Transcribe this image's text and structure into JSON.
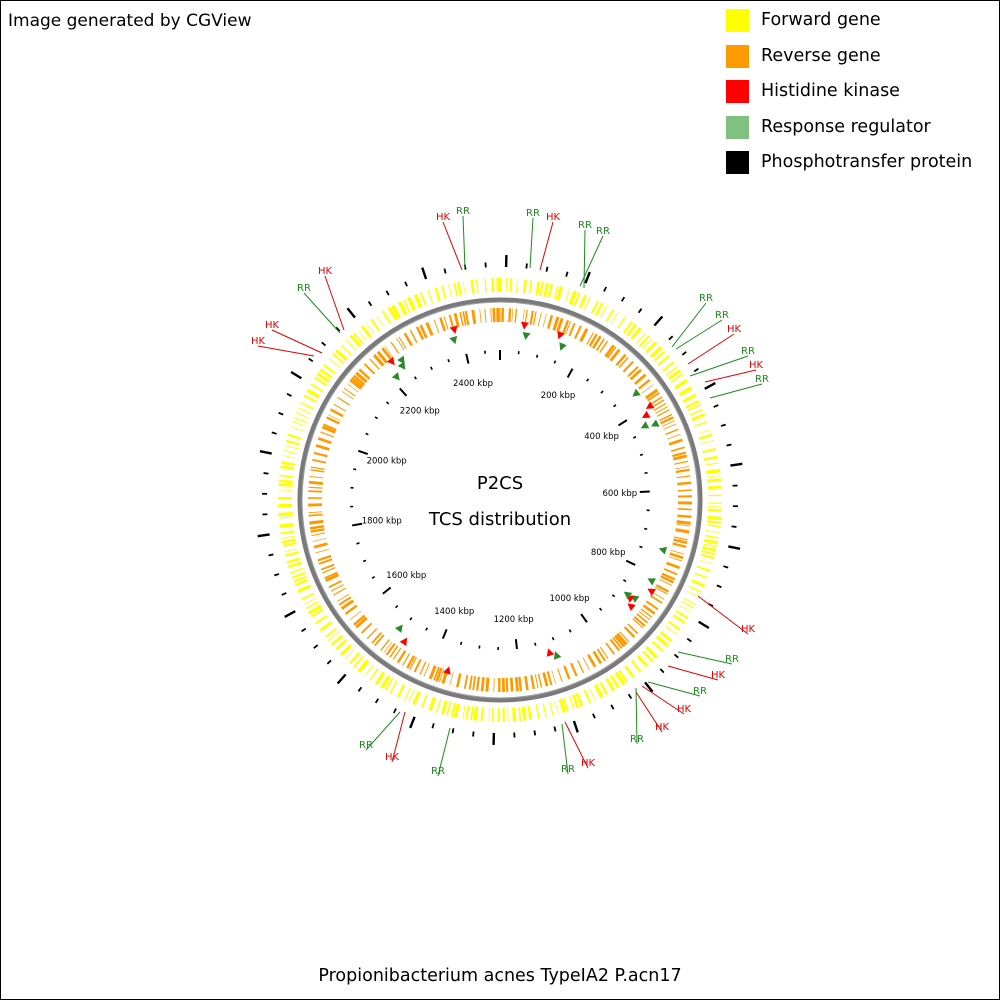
{
  "credit": "Image generated by CGView",
  "legend": [
    {
      "label": "Forward gene",
      "color": "#ffff00"
    },
    {
      "label": "Reverse gene",
      "color": "#ff9900"
    },
    {
      "label": "Histidine kinase",
      "color": "#ff0000"
    },
    {
      "label": "Response regulator",
      "color": "#80c080"
    },
    {
      "label": "Phosphotransfer protein",
      "color": "#000000"
    }
  ],
  "center_title": {
    "line1": "P2CS",
    "line2": "TCS distribution"
  },
  "footer": "Propionibacterium acnes TypeIA2 P.acn17",
  "map": {
    "genome_length_kbp": 2490,
    "tick_labels_kbp": [
      200,
      400,
      600,
      800,
      1000,
      1200,
      1400,
      1600,
      1800,
      2000,
      2200,
      2400
    ],
    "tick_label_suffix": " kbp",
    "feature_labels": [
      {
        "text": "RR",
        "type": "Response regulator"
      },
      {
        "text": "HK",
        "type": "Histidine kinase"
      },
      {
        "text": "RR",
        "type": "Response regulator"
      },
      {
        "text": "HK",
        "type": "Histidine kinase"
      },
      {
        "text": "RR",
        "type": "Response regulator"
      },
      {
        "text": "RR",
        "type": "Response regulator"
      },
      {
        "text": "HK",
        "type": "Histidine kinase"
      },
      {
        "text": "RR",
        "type": "Response regulator"
      },
      {
        "text": "HK",
        "type": "Histidine kinase"
      },
      {
        "text": "HK",
        "type": "Histidine kinase"
      },
      {
        "text": "RR",
        "type": "Response regulator"
      },
      {
        "text": "RR",
        "type": "Response regulator"
      },
      {
        "text": "HK",
        "type": "Histidine kinase"
      },
      {
        "text": "RR",
        "type": "Response regulator"
      },
      {
        "text": "HK",
        "type": "Histidine kinase"
      },
      {
        "text": "RR",
        "type": "Response regulator"
      },
      {
        "text": "HK",
        "type": "Histidine kinase"
      },
      {
        "text": "RR",
        "type": "Response regulator"
      },
      {
        "text": "HK",
        "type": "Histidine kinase"
      },
      {
        "text": "RR",
        "type": "Response regulator"
      },
      {
        "text": "HK",
        "type": "Histidine kinase"
      },
      {
        "text": "HK",
        "type": "Histidine kinase"
      },
      {
        "text": "RR",
        "type": "Response regulator"
      },
      {
        "text": "HK",
        "type": "Histidine kinase"
      },
      {
        "text": "RR",
        "type": "Response regulator"
      },
      {
        "text": "RR",
        "type": "Response regulator"
      },
      {
        "text": "HK",
        "type": "Histidine kinase"
      }
    ]
  }
}
